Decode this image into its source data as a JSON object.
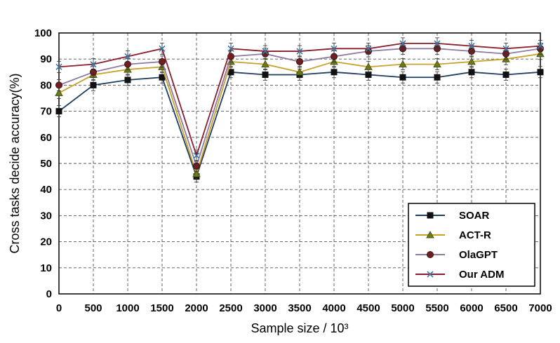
{
  "chart_data": {
    "type": "line",
    "x": [
      0,
      500,
      1000,
      1500,
      2000,
      2500,
      3000,
      3500,
      4000,
      4500,
      5000,
      5500,
      6000,
      6500,
      7000
    ],
    "xlabel": "Sample size / 10³",
    "ylabel": "Cross tasks decide accuracy(%)",
    "xlim": [
      0,
      7000
    ],
    "ylim": [
      0,
      100
    ],
    "yticks": [
      0,
      10,
      20,
      30,
      40,
      50,
      60,
      70,
      80,
      90,
      100
    ],
    "grid": true,
    "legend_position": "bottom-right",
    "series": [
      {
        "name": "SOAR",
        "color": "#1f3e5f",
        "marker": "square",
        "values": [
          70,
          80,
          82,
          83,
          45,
          85,
          84,
          84,
          85,
          84,
          83,
          83,
          85,
          84,
          85
        ]
      },
      {
        "name": "ACT-R",
        "color": "#c8a22a",
        "marker": "triangle",
        "values": [
          77,
          84,
          86,
          87,
          46,
          89,
          88,
          85,
          89,
          87,
          88,
          88,
          89,
          90,
          92
        ]
      },
      {
        "name": "OlaGPT",
        "color": "#8e7aa3",
        "marker": "circle",
        "values": [
          80,
          85,
          88,
          89,
          49,
          91,
          92,
          89,
          91,
          93,
          94,
          94,
          93,
          92,
          94
        ]
      },
      {
        "name": "Our ADM",
        "color": "#8b1c2b",
        "marker": "x",
        "values": [
          87,
          88,
          91,
          94,
          53,
          94,
          93,
          93,
          94,
          94,
          96,
          96,
          95,
          94,
          95
        ]
      }
    ]
  }
}
